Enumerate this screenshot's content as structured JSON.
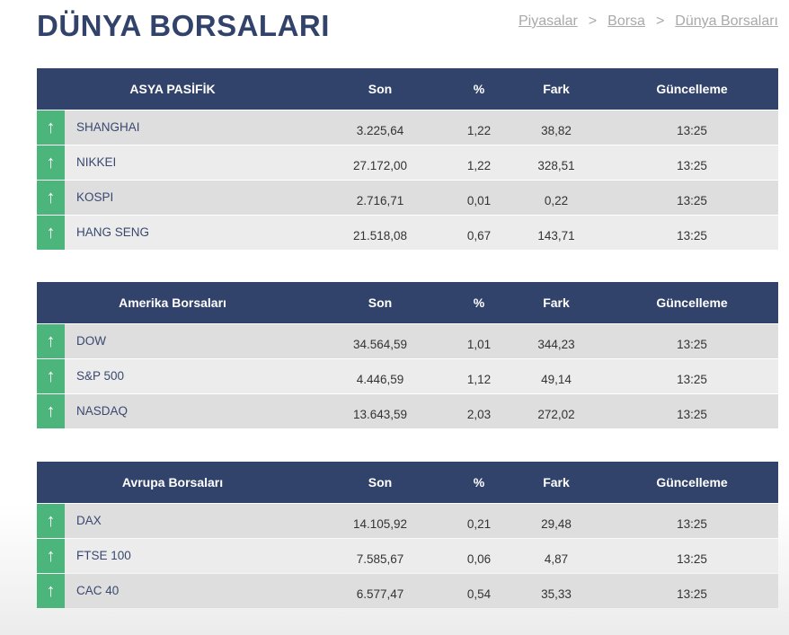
{
  "title": "DÜNYA BORSALARI",
  "breadcrumb": [
    "Piyasalar",
    "Borsa",
    "Dünya Borsaları"
  ],
  "columns": {
    "son": "Son",
    "pct": "%",
    "fark": "Fark",
    "guncelleme": "Güncelleme"
  },
  "colors": {
    "header": "#32436b",
    "up": "#4cb57b"
  },
  "tables": [
    {
      "title": "ASYA PASİFİK",
      "rows": [
        {
          "name": "SHANGHAI",
          "son": "3.225,64",
          "pct": "1,22",
          "fark": "38,82",
          "time": "13:25",
          "dir": "up"
        },
        {
          "name": "NIKKEI",
          "son": "27.172,00",
          "pct": "1,22",
          "fark": "328,51",
          "time": "13:25",
          "dir": "up"
        },
        {
          "name": "KOSPI",
          "son": "2.716,71",
          "pct": "0,01",
          "fark": "0,22",
          "time": "13:25",
          "dir": "up"
        },
        {
          "name": "HANG SENG",
          "son": "21.518,08",
          "pct": "0,67",
          "fark": "143,71",
          "time": "13:25",
          "dir": "up"
        }
      ]
    },
    {
      "title": "Amerika Borsaları",
      "rows": [
        {
          "name": "DOW",
          "son": "34.564,59",
          "pct": "1,01",
          "fark": "344,23",
          "time": "13:25",
          "dir": "up"
        },
        {
          "name": "S&P 500",
          "son": "4.446,59",
          "pct": "1,12",
          "fark": "49,14",
          "time": "13:25",
          "dir": "up"
        },
        {
          "name": "NASDAQ",
          "son": "13.643,59",
          "pct": "2,03",
          "fark": "272,02",
          "time": "13:25",
          "dir": "up"
        }
      ]
    },
    {
      "title": "Avrupa Borsaları",
      "rows": [
        {
          "name": "DAX",
          "son": "14.105,92",
          "pct": "0,21",
          "fark": "29,48",
          "time": "13:25",
          "dir": "up"
        },
        {
          "name": "FTSE 100",
          "son": "7.585,67",
          "pct": "0,06",
          "fark": "4,87",
          "time": "13:25",
          "dir": "up"
        },
        {
          "name": "CAC 40",
          "son": "6.577,47",
          "pct": "0,54",
          "fark": "35,33",
          "time": "13:25",
          "dir": "up"
        }
      ]
    }
  ]
}
